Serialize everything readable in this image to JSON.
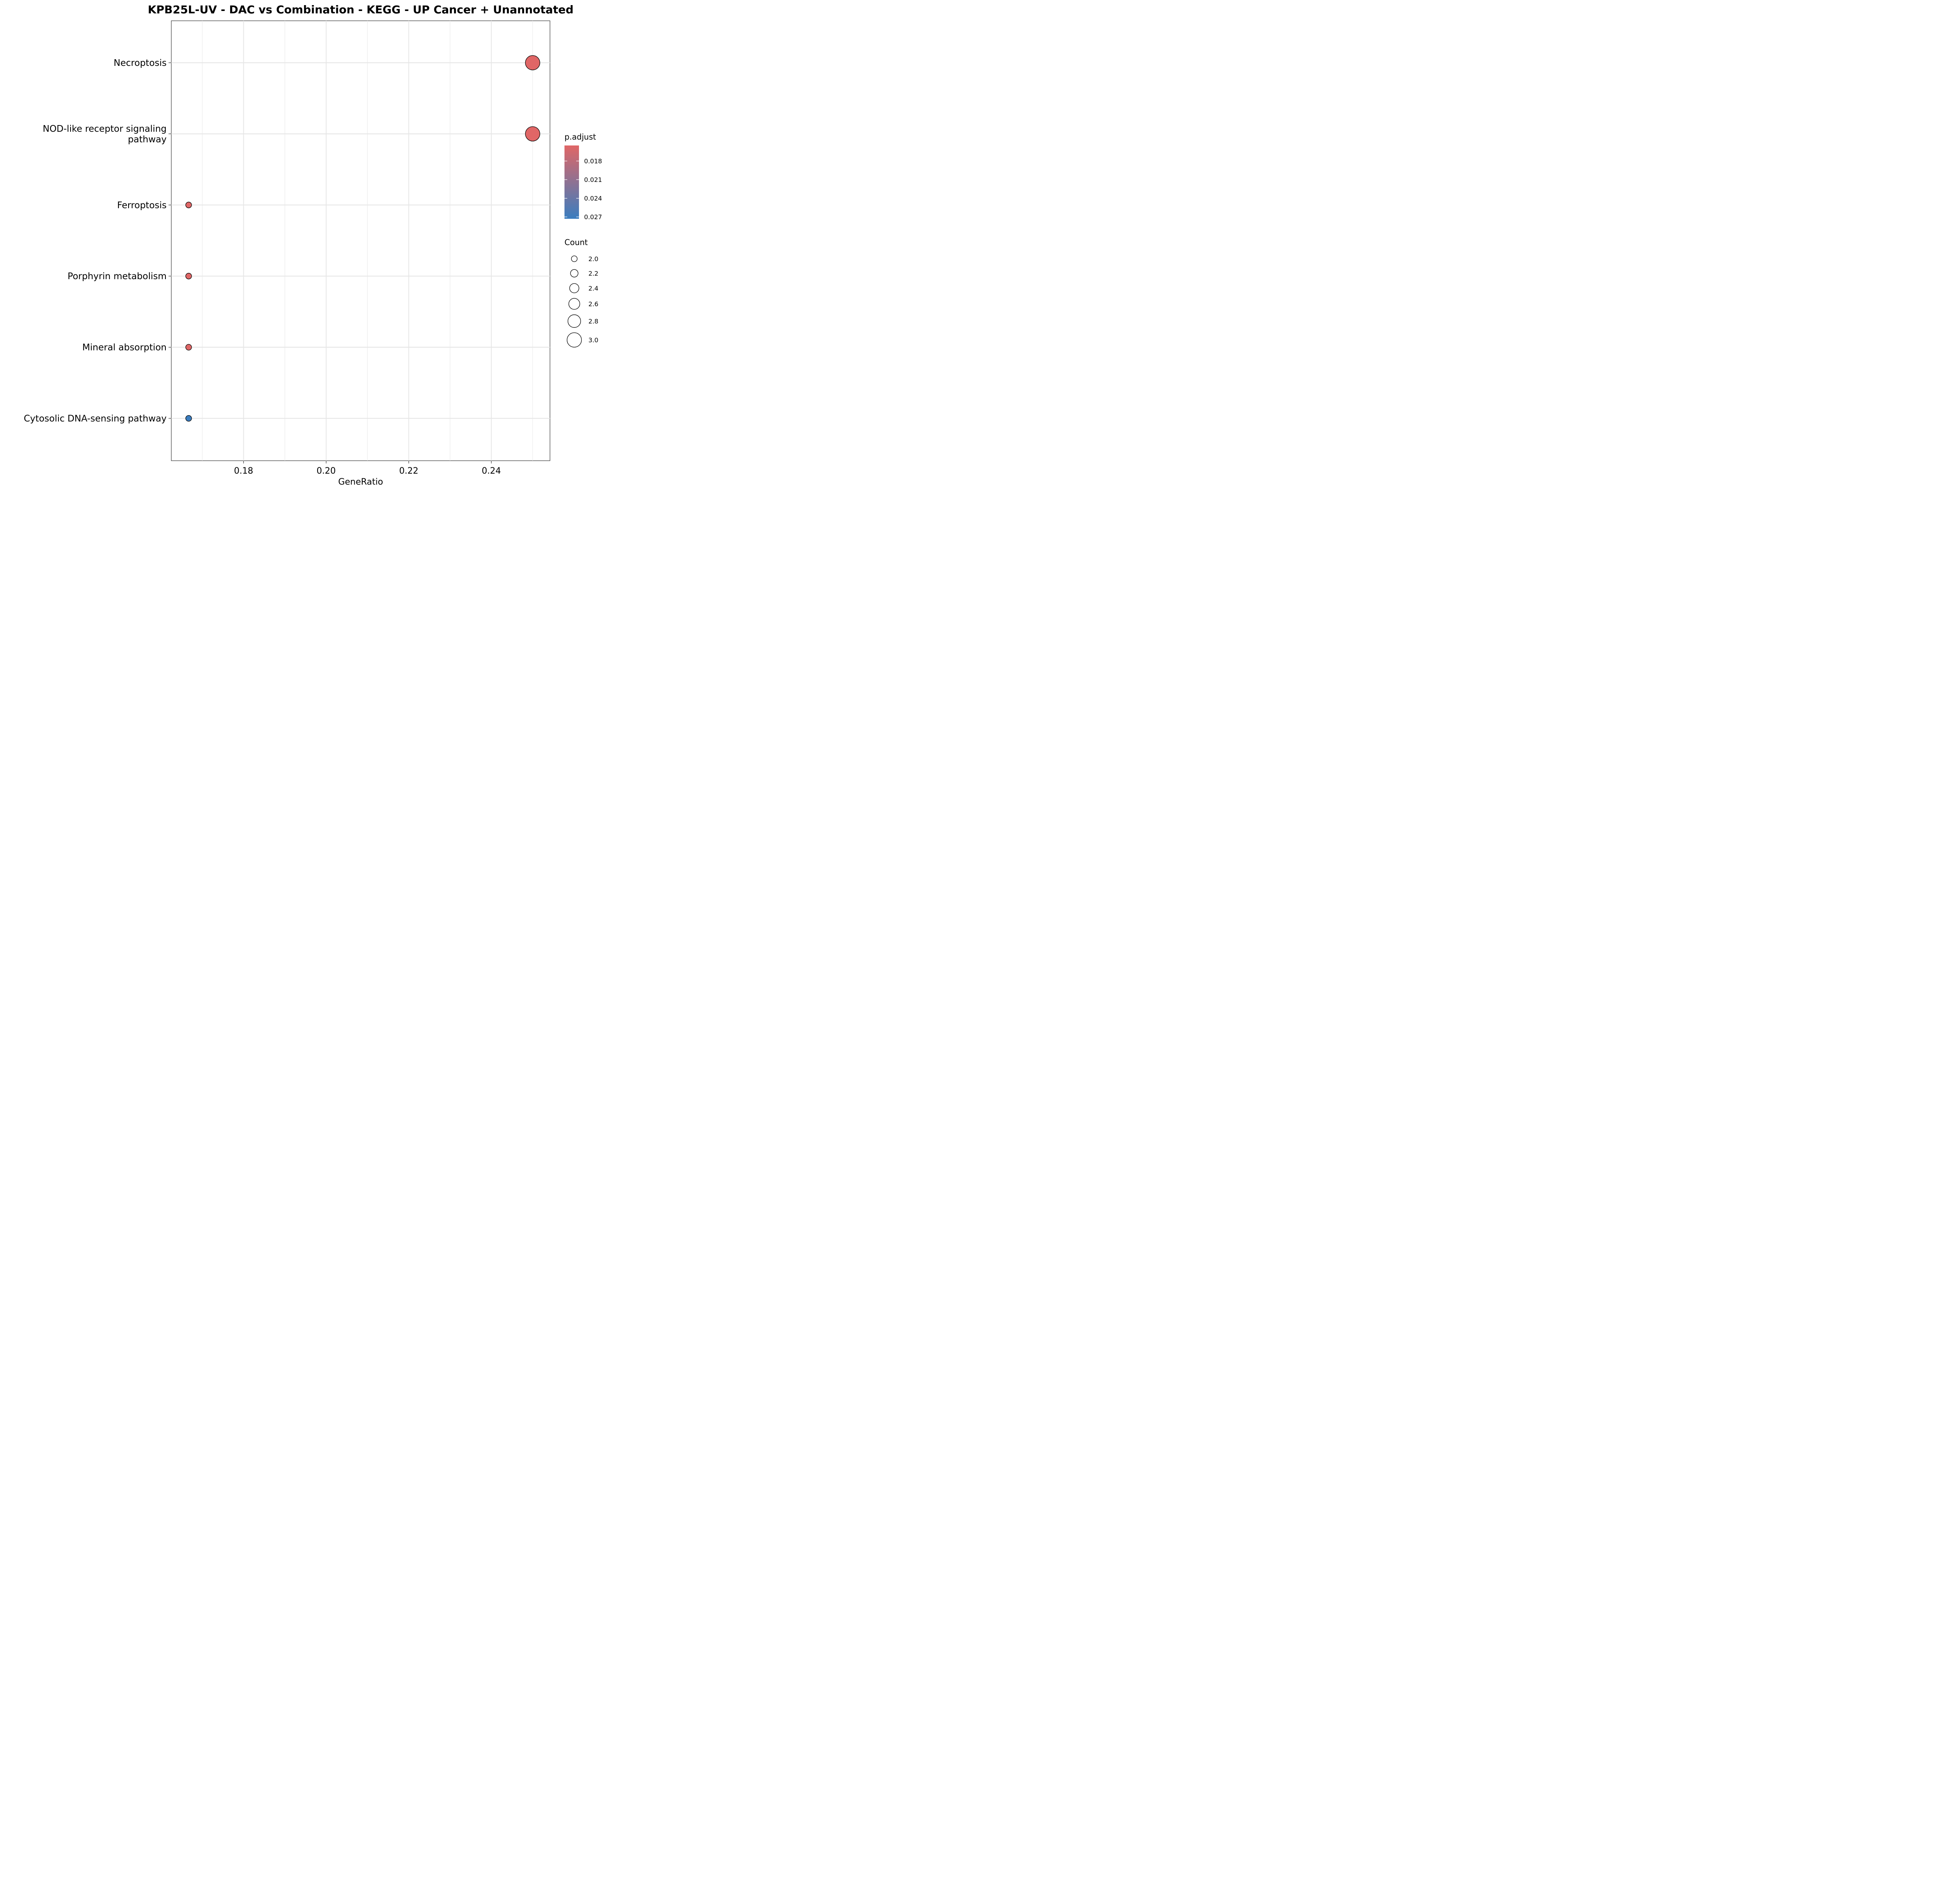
{
  "chart_data": {
    "type": "scatter",
    "title": "KPB25L-UV - DAC vs Combination - KEGG - UP  Cancer + Unannotated",
    "xlabel": "GeneRatio",
    "ylabel": "",
    "xlim": [
      0.1625,
      0.2542
    ],
    "xticks": [
      0.18,
      0.2,
      0.22,
      0.24
    ],
    "xtick_labels": [
      "0.18",
      "0.20",
      "0.22",
      "0.24"
    ],
    "grid": true,
    "categories": [
      "Necroptosis",
      "NOD-like receptor signaling pathway",
      "Ferroptosis",
      "Porphyrin metabolism",
      "Mineral absorption",
      "Cytosolic DNA-sensing pathway"
    ],
    "category_label_lines": [
      [
        "Necroptosis"
      ],
      [
        "NOD-like receptor signaling",
        "pathway"
      ],
      [
        "Ferroptosis"
      ],
      [
        "Porphyrin metabolism"
      ],
      [
        "Mineral absorption"
      ],
      [
        "Cytosolic DNA-sensing pathway"
      ]
    ],
    "points": [
      {
        "category": "Necroptosis",
        "gene_ratio": 0.25,
        "count": 3,
        "p_adjust": 0.0155
      },
      {
        "category": "NOD-like receptor signaling pathway",
        "gene_ratio": 0.25,
        "count": 3,
        "p_adjust": 0.0155
      },
      {
        "category": "Ferroptosis",
        "gene_ratio": 0.1667,
        "count": 2,
        "p_adjust": 0.0155
      },
      {
        "category": "Porphyrin metabolism",
        "gene_ratio": 0.1667,
        "count": 2,
        "p_adjust": 0.0155
      },
      {
        "category": "Mineral absorption",
        "gene_ratio": 0.1667,
        "count": 2,
        "p_adjust": 0.0155
      },
      {
        "category": "Cytosolic DNA-sensing pathway",
        "gene_ratio": 0.1667,
        "count": 2,
        "p_adjust": 0.0273
      }
    ],
    "color_legend": {
      "title": "p.adjust",
      "range": [
        0.0155,
        0.0273
      ],
      "ticks": [
        0.018,
        0.021,
        0.024,
        0.027
      ],
      "tick_labels": [
        "0.018",
        "0.021",
        "0.024",
        "0.027"
      ],
      "low_color": "#E06666",
      "high_color": "#3B7DBF"
    },
    "size_legend": {
      "title": "Count",
      "values": [
        2.0,
        2.2,
        2.4,
        2.6,
        2.8,
        3.0
      ],
      "labels": [
        "2.0",
        "2.2",
        "2.4",
        "2.6",
        "2.8",
        "3.0"
      ]
    }
  }
}
